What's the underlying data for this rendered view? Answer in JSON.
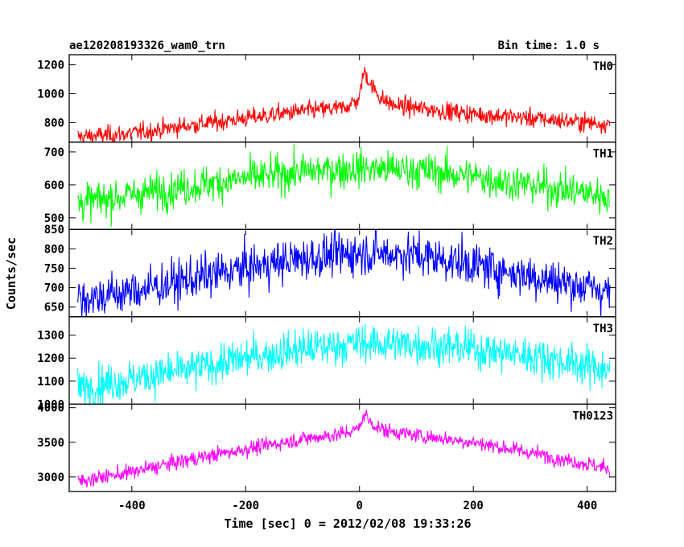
{
  "header": {
    "source_name": "ae120208193326_wam0_trn",
    "bin_time": "Bin time: 1.0 s"
  },
  "axes": {
    "xlabel": "Time [sec] 0 = 2012/02/08 19:33:26",
    "ylabel": "Counts/sec"
  },
  "chart_data": {
    "type": "line",
    "title": "ae120208193326_wam0_trn",
    "subtitle": "Bin time: 1.0 s",
    "xlabel": "Time [sec] 0 = 2012/02/08 19:33:26",
    "ylabel": "Counts/sec",
    "xlim": [
      -510,
      450
    ],
    "x_range": [
      -495,
      440
    ],
    "x_step": 1.0,
    "xticks": [
      -400,
      -200,
      0,
      200,
      400
    ],
    "grid": false,
    "legend": "panel labels top-right",
    "panels": [
      {
        "name": "TH0",
        "color": "#ff0000",
        "ylim": [
          665,
          1270
        ],
        "yticks": [
          800,
          1000,
          1200
        ],
        "trend_x": [
          -495,
          -400,
          -300,
          -200,
          -100,
          -30,
          0,
          5,
          10,
          20,
          40,
          60,
          100,
          200,
          300,
          440
        ],
        "trend_y": [
          700,
          725,
          780,
          830,
          880,
          900,
          960,
          1120,
          1150,
          1060,
          960,
          920,
          900,
          860,
          830,
          790
        ],
        "noise": 32
      },
      {
        "name": "TH1",
        "color": "#00ff00",
        "ylim": [
          465,
          730
        ],
        "yticks": [
          500,
          600,
          700
        ],
        "trend_x": [
          -495,
          -400,
          -300,
          -200,
          -100,
          0,
          100,
          200,
          300,
          440
        ],
        "trend_y": [
          545,
          570,
          595,
          620,
          640,
          650,
          645,
          625,
          600,
          565
        ],
        "noise": 28
      },
      {
        "name": "TH2",
        "color": "#0000ff",
        "ylim": [
          625,
          850
        ],
        "yticks": [
          650,
          700,
          750,
          800,
          850
        ],
        "trend_x": [
          -495,
          -400,
          -300,
          -200,
          -100,
          0,
          100,
          200,
          300,
          440
        ],
        "trend_y": [
          670,
          690,
          720,
          750,
          775,
          790,
          785,
          760,
          730,
          690
        ],
        "noise": 28
      },
      {
        "name": "TH3",
        "color": "#00ffff",
        "ylim": [
          1000,
          1380
        ],
        "yticks": [
          1000,
          1100,
          1200,
          1300
        ],
        "trend_x": [
          -495,
          -400,
          -300,
          -200,
          -100,
          0,
          100,
          200,
          300,
          440
        ],
        "trend_y": [
          1070,
          1110,
          1150,
          1200,
          1240,
          1265,
          1260,
          1240,
          1210,
          1150
        ],
        "noise": 42
      },
      {
        "name": "TH0123",
        "color": "#ff00ff",
        "ylim": [
          2790,
          4050
        ],
        "yticks": [
          3000,
          3500,
          4000
        ],
        "trend_x": [
          -495,
          -400,
          -300,
          -200,
          -100,
          -30,
          0,
          5,
          10,
          20,
          40,
          100,
          200,
          300,
          440
        ],
        "trend_y": [
          2940,
          3070,
          3250,
          3400,
          3550,
          3620,
          3700,
          3860,
          3900,
          3780,
          3680,
          3600,
          3500,
          3350,
          3120
        ],
        "noise": 55
      }
    ]
  }
}
